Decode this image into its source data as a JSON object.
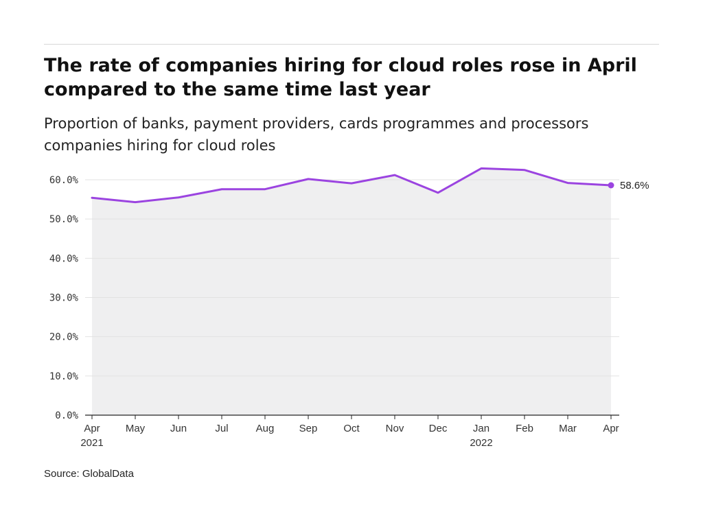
{
  "title": "The rate of companies hiring for cloud roles rose in April compared to the same time last year",
  "subtitle": "Proportion of banks, payment providers, cards programmes and processors companies hiring for cloud roles",
  "source": "Source: GlobalData",
  "colors": {
    "line": "#9b44e0",
    "area": "#efeff0",
    "grid": "#e2e2e2",
    "axis": "#222222"
  },
  "chart_data": {
    "type": "area",
    "title": "The rate of companies hiring for cloud roles rose in April compared to the same time last year",
    "subtitle": "Proportion of banks, payment providers, cards programmes and processors companies hiring for cloud roles",
    "xlabel": "",
    "ylabel": "",
    "ylim": [
      0,
      60
    ],
    "yticks": [
      "0.0%",
      "10.0%",
      "20.0%",
      "30.0%",
      "40.0%",
      "50.0%",
      "60.0%"
    ],
    "ytick_values": [
      0,
      10,
      20,
      30,
      40,
      50,
      60
    ],
    "categories": [
      "Apr",
      "May",
      "Jun",
      "Jul",
      "Aug",
      "Sep",
      "Oct",
      "Nov",
      "Dec",
      "Jan",
      "Feb",
      "Mar",
      "Apr"
    ],
    "category_years": [
      "2021",
      "",
      "",
      "",
      "",
      "",
      "",
      "",
      "",
      "2022",
      "",
      "",
      ""
    ],
    "series": [
      {
        "values": [
          55.4,
          54.3,
          55.5,
          57.6,
          57.6,
          60.2,
          59.1,
          61.2,
          56.7,
          62.9,
          62.5,
          59.2,
          58.6
        ]
      }
    ],
    "end_label": "58.6%",
    "grid": true,
    "legend": "none"
  }
}
